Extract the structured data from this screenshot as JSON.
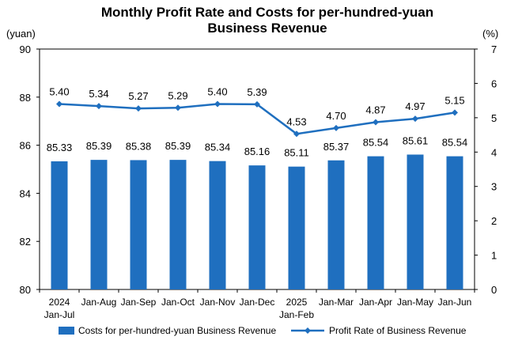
{
  "chart_data": {
    "type": "bar",
    "title": "Monthly Profit Rate and Costs for per-hundred-yuan Business Revenue",
    "title_lines": [
      "Monthly Profit Rate and Costs for per-hundred-yuan",
      "Business Revenue"
    ],
    "left_unit": "(yuan)",
    "right_unit": "(%)",
    "categories": [
      [
        "2024",
        "Jan-Jul"
      ],
      [
        "Jan-Aug"
      ],
      [
        "Jan-Sep"
      ],
      [
        "Jan-Oct"
      ],
      [
        "Jan-Nov"
      ],
      [
        "Jan-Dec"
      ],
      [
        "2025",
        "Jan-Feb"
      ],
      [
        "Jan-Mar"
      ],
      [
        "Jan-Apr"
      ],
      [
        "Jan-May"
      ],
      [
        "Jan-Jun"
      ]
    ],
    "series": [
      {
        "name": "Costs for per-hundred-yuan Business Revenue",
        "type": "bar",
        "axis": "left",
        "color": "#1f6fbf",
        "values": [
          85.33,
          85.39,
          85.38,
          85.39,
          85.34,
          85.16,
          85.11,
          85.37,
          85.54,
          85.61,
          85.54
        ],
        "labels": [
          "85.33",
          "85.39",
          "85.38",
          "85.39",
          "85.34",
          "85.16",
          "85.11",
          "85.37",
          "85.54",
          "85.61",
          "85.54"
        ]
      },
      {
        "name": "Profit Rate of Business Revenue",
        "type": "line",
        "axis": "right",
        "color": "#1f6fbf",
        "marker": "diamond",
        "values": [
          5.4,
          5.34,
          5.27,
          5.29,
          5.4,
          5.39,
          4.53,
          4.7,
          4.87,
          4.97,
          5.15
        ],
        "labels": [
          "5.40",
          "5.34",
          "5.27",
          "5.29",
          "5.40",
          "5.39",
          "4.53",
          "4.70",
          "4.87",
          "4.97",
          "5.15"
        ]
      }
    ],
    "y_left": {
      "min": 80,
      "max": 90,
      "ticks": [
        "80",
        "82",
        "84",
        "86",
        "88",
        "90"
      ]
    },
    "y_right": {
      "min": 0,
      "max": 7,
      "ticks": [
        "0",
        "1",
        "2",
        "3",
        "4",
        "5",
        "6",
        "7"
      ]
    },
    "grid": false,
    "legend_position": "bottom"
  }
}
